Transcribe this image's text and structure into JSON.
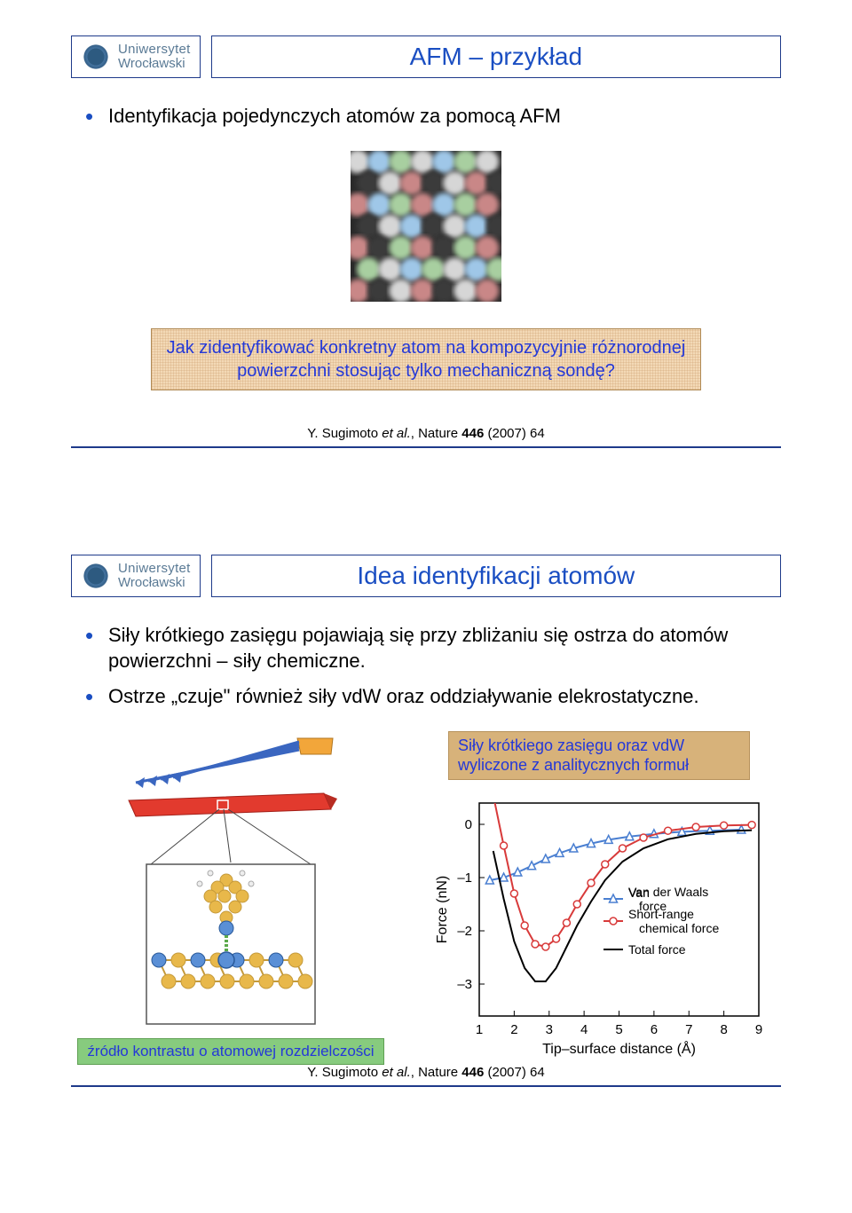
{
  "logo": {
    "line1": "Uniwersytet",
    "line2": "Wrocławski"
  },
  "colors": {
    "accent_blue": "#1a4ec2",
    "border_navy": "#1e3a8a",
    "tan_banner": "#d7b27a",
    "green_banner": "#87cb7e"
  },
  "slide1": {
    "title": "AFM – przykład",
    "bullet1": "Identyfikacja pojedynczych atomów za pomocą AFM",
    "afm_grid": {
      "rows": 7,
      "cols": 7,
      "atom_colors": [
        "#d6d6d6",
        "#9fc7e8",
        "#a8cfa0",
        "#c98787",
        "#3a3a3a"
      ],
      "background": "#2a2a2a"
    },
    "question": "Jak zidentyfikować konkretny atom na kompozycyjnie różnorodnej powierzchni stosując tylko mechaniczną sondę?",
    "citation_prefix": "Y. Sugimoto ",
    "citation_italic": "et al.",
    "citation_suffix": ", Nature ",
    "citation_vol": "446",
    "citation_tail": " (2007) 64"
  },
  "slide2": {
    "title": "Idea identyfikacji atomów",
    "bullet1": "Siły krótkiego zasięgu pojawiają się przy zbliżaniu się ostrza do atomów powierzchni – siły chemiczne.",
    "bullet2": "Ostrze „czuje\" również siły vdW oraz oddziaływanie elekrostatyczne.",
    "tan_note": "Siły krótkiego zasięgu oraz vdW wyliczone z analitycznych formuł",
    "green_note": "źródło kontrastu o atomowej rozdzielczości",
    "tip_schematic": {
      "holder_color": "#f2a63a",
      "cantilever_color": "#3a66c0",
      "slab_color": "#e23a2e",
      "atom_top_color": "#5a8fd6",
      "atom_mid_color": "#e8b84a",
      "atom_bond_color": "#c59a3a"
    },
    "force_chart": {
      "type": "line",
      "xlabel": "Tip–surface distance (Å)",
      "ylabel": "Force (nN)",
      "xlim": [
        1,
        9
      ],
      "ylim": [
        -3.6,
        0.4
      ],
      "xticks": [
        1,
        2,
        3,
        4,
        5,
        6,
        7,
        8,
        9
      ],
      "yticks": [
        0,
        -1,
        -2,
        -3
      ],
      "background": "#ffffff",
      "axis_color": "#000000",
      "label_fontsize": 16,
      "tick_fontsize": 15,
      "series": [
        {
          "name": "Van der Waals force",
          "color": "#4a7fd1",
          "marker": "triangle",
          "x": [
            1.3,
            1.7,
            2.1,
            2.5,
            2.9,
            3.3,
            3.7,
            4.2,
            4.7,
            5.3,
            6.0,
            6.8,
            7.6,
            8.5
          ],
          "y": [
            -1.05,
            -1.0,
            -0.9,
            -0.78,
            -0.65,
            -0.54,
            -0.45,
            -0.36,
            -0.29,
            -0.23,
            -0.18,
            -0.14,
            -0.12,
            -0.1
          ]
        },
        {
          "name": "Short-range chemical force",
          "color": "#d83a3a",
          "marker": "circle",
          "x": [
            1.4,
            1.7,
            2.0,
            2.3,
            2.6,
            2.9,
            3.2,
            3.5,
            3.8,
            4.2,
            4.6,
            5.1,
            5.7,
            6.4,
            7.2,
            8.0,
            8.8
          ],
          "y": [
            0.55,
            -0.4,
            -1.3,
            -1.9,
            -2.25,
            -2.3,
            -2.15,
            -1.85,
            -1.5,
            -1.1,
            -0.75,
            -0.45,
            -0.25,
            -0.12,
            -0.05,
            -0.02,
            -0.01
          ]
        },
        {
          "name": "Total force",
          "color": "#000000",
          "marker": "none",
          "x": [
            1.4,
            1.7,
            2.0,
            2.3,
            2.6,
            2.9,
            3.2,
            3.5,
            3.8,
            4.2,
            4.6,
            5.1,
            5.7,
            6.4,
            7.2,
            8.0,
            8.8
          ],
          "y": [
            -0.5,
            -1.4,
            -2.2,
            -2.7,
            -2.95,
            -2.95,
            -2.7,
            -2.3,
            -1.9,
            -1.45,
            -1.05,
            -0.7,
            -0.45,
            -0.28,
            -0.18,
            -0.13,
            -0.11
          ]
        }
      ],
      "legend_items": [
        {
          "marker": "triangle",
          "color": "#4a7fd1",
          "label": "Van der Waals force"
        },
        {
          "marker": "circle",
          "color": "#d83a3a",
          "label": "Short-range chemical force"
        },
        {
          "marker": "line",
          "color": "#000000",
          "label": "Total force"
        }
      ]
    },
    "citation_prefix": "Y. Sugimoto ",
    "citation_italic": "et al.",
    "citation_suffix": ", Nature ",
    "citation_vol": "446",
    "citation_tail": " (2007) 64"
  }
}
